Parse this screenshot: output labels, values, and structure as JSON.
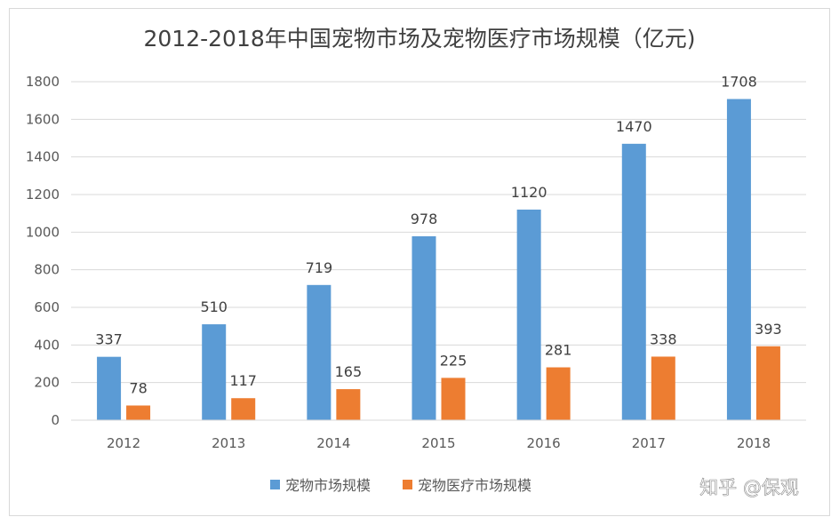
{
  "chart_data": {
    "type": "bar",
    "title": "2012-2018年中国宠物市场及宠物医疗市场规模（亿元)",
    "categories": [
      "2012",
      "2013",
      "2014",
      "2015",
      "2016",
      "2017",
      "2018"
    ],
    "series": [
      {
        "name": "宠物市场规模",
        "values": [
          337,
          510,
          719,
          978,
          1120,
          1470,
          1708
        ],
        "color": "#5b9bd5"
      },
      {
        "name": "宠物医疗市场规模",
        "values": [
          78,
          117,
          165,
          225,
          281,
          338,
          393
        ],
        "color": "#ed7d31"
      }
    ],
    "ylim": [
      0,
      1800
    ],
    "yticks": [
      "0",
      "200",
      "400",
      "600",
      "800",
      "1000",
      "1200",
      "1400",
      "1600",
      "1800"
    ],
    "xlabel": "",
    "ylabel": "",
    "grid": true,
    "legend": "bottom"
  },
  "watermark": "知乎 @保观"
}
